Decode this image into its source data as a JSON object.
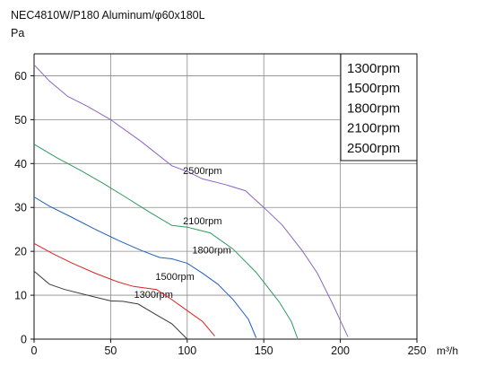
{
  "header": {
    "title": "NEC4810W/P180 Aluminum/φ60x180L",
    "y_unit": "Pa"
  },
  "chart_data": {
    "type": "line",
    "title": "NEC4810W/P180 Aluminum/φ60x180L",
    "ylabel": "Pa",
    "xlabel": "m³/h",
    "xlim": [
      0,
      250
    ],
    "ylim": [
      0,
      65
    ],
    "xticks": [
      0,
      50,
      100,
      150,
      200,
      250
    ],
    "yticks": [
      0,
      10,
      20,
      30,
      40,
      50,
      60
    ],
    "grid": true,
    "legend": [
      "1300rpm",
      "1500rpm",
      "1800rpm",
      "2100rpm",
      "2500rpm"
    ],
    "legend_position": "top-right",
    "series": [
      {
        "name": "1300rpm",
        "color": "#3a3a3a",
        "points": [
          [
            0,
            15.5
          ],
          [
            10,
            12.5
          ],
          [
            20,
            11.3
          ],
          [
            35,
            10.0
          ],
          [
            50,
            8.7
          ],
          [
            58,
            8.6
          ],
          [
            68,
            8.0
          ],
          [
            80,
            5.5
          ],
          [
            90,
            3.5
          ],
          [
            100,
            0
          ]
        ],
        "label_at": [
          78,
          10.2
        ]
      },
      {
        "name": "1500rpm",
        "color": "#e02020",
        "points": [
          [
            0,
            21.8
          ],
          [
            12,
            19.5
          ],
          [
            25,
            17.3
          ],
          [
            40,
            15.0
          ],
          [
            55,
            13.0
          ],
          [
            65,
            12.0
          ],
          [
            80,
            11.3
          ],
          [
            90,
            9.0
          ],
          [
            100,
            6.5
          ],
          [
            110,
            4.0
          ],
          [
            118,
            0.7
          ]
        ],
        "label_at": [
          92,
          14.3
        ]
      },
      {
        "name": "1800rpm",
        "color": "#1f5fbf",
        "points": [
          [
            0,
            32.4
          ],
          [
            10,
            30.3
          ],
          [
            25,
            27.7
          ],
          [
            40,
            25.0
          ],
          [
            55,
            22.5
          ],
          [
            70,
            20.2
          ],
          [
            82,
            18.6
          ],
          [
            90,
            18.3
          ],
          [
            100,
            17.3
          ],
          [
            110,
            15.0
          ],
          [
            120,
            12.5
          ],
          [
            130,
            9.0
          ],
          [
            140,
            4.5
          ],
          [
            145,
            0.3
          ]
        ],
        "label_at": [
          116,
          20.3
        ]
      },
      {
        "name": "2100rpm",
        "color": "#2e9a5e",
        "points": [
          [
            0,
            44.4
          ],
          [
            15,
            41.3
          ],
          [
            30,
            38.5
          ],
          [
            45,
            35.5
          ],
          [
            60,
            32.3
          ],
          [
            75,
            29.0
          ],
          [
            90,
            25.9
          ],
          [
            100,
            25.5
          ],
          [
            115,
            24.2
          ],
          [
            130,
            20.5
          ],
          [
            145,
            15.2
          ],
          [
            160,
            8.5
          ],
          [
            168,
            4.0
          ],
          [
            172,
            0.2
          ]
        ],
        "label_at": [
          110,
          27.0
        ]
      },
      {
        "name": "2500rpm",
        "color": "#8a66c1",
        "points": [
          [
            0,
            62.5
          ],
          [
            10,
            58.8
          ],
          [
            22,
            55.3
          ],
          [
            35,
            53.0
          ],
          [
            50,
            50.0
          ],
          [
            70,
            45.0
          ],
          [
            90,
            39.5
          ],
          [
            100,
            38.2
          ],
          [
            110,
            36.5
          ],
          [
            125,
            35.2
          ],
          [
            138,
            33.8
          ],
          [
            150,
            30.0
          ],
          [
            162,
            26.0
          ],
          [
            175,
            20.2
          ],
          [
            185,
            15.0
          ],
          [
            195,
            8.0
          ],
          [
            205,
            0.5
          ]
        ],
        "label_at": [
          110,
          38.4
        ]
      }
    ]
  },
  "colors": {
    "grid": "#8a8a8a",
    "axis": "#111111"
  }
}
